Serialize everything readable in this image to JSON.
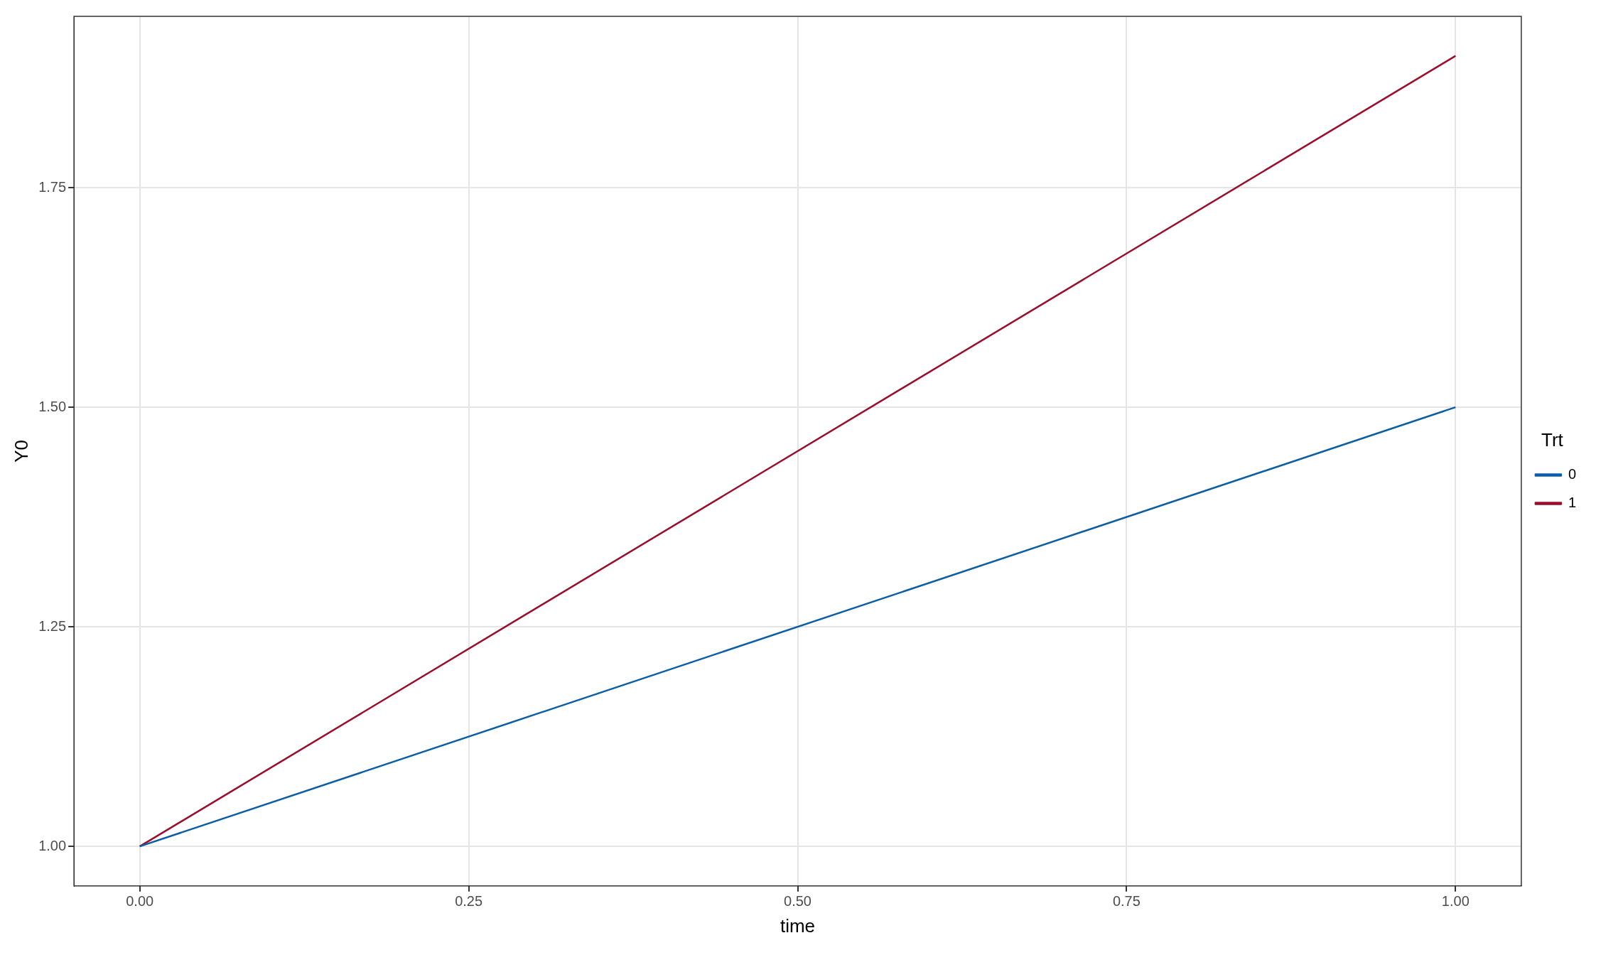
{
  "chart_data": {
    "type": "line",
    "xlabel": "time",
    "ylabel": "Y0",
    "legend_title": "Trt",
    "x": [
      0,
      1
    ],
    "series": [
      {
        "name": "0",
        "color": "#0a5ea8",
        "values": [
          1.0,
          1.5
        ]
      },
      {
        "name": "1",
        "color": "#9b0d2a",
        "values": [
          1.0,
          1.9
        ]
      }
    ],
    "xlim": [
      -0.05,
      1.05
    ],
    "xticks": [
      {
        "value": 0,
        "label": "0.00"
      },
      {
        "value": 0.25,
        "label": "0.25"
      },
      {
        "value": 0.5,
        "label": "0.50"
      },
      {
        "value": 0.75,
        "label": "0.75"
      },
      {
        "value": 1,
        "label": "1.00"
      }
    ],
    "ylim": [
      0.955,
      1.945
    ],
    "yticks": [
      {
        "value": 1,
        "label": "1.00"
      },
      {
        "value": 1.25,
        "label": "1.25"
      },
      {
        "value": 1.5,
        "label": "1.50"
      },
      {
        "value": 1.75,
        "label": "1.75"
      }
    ],
    "grid": true,
    "legend": "right",
    "marker": "none",
    "line_style": "solid"
  }
}
